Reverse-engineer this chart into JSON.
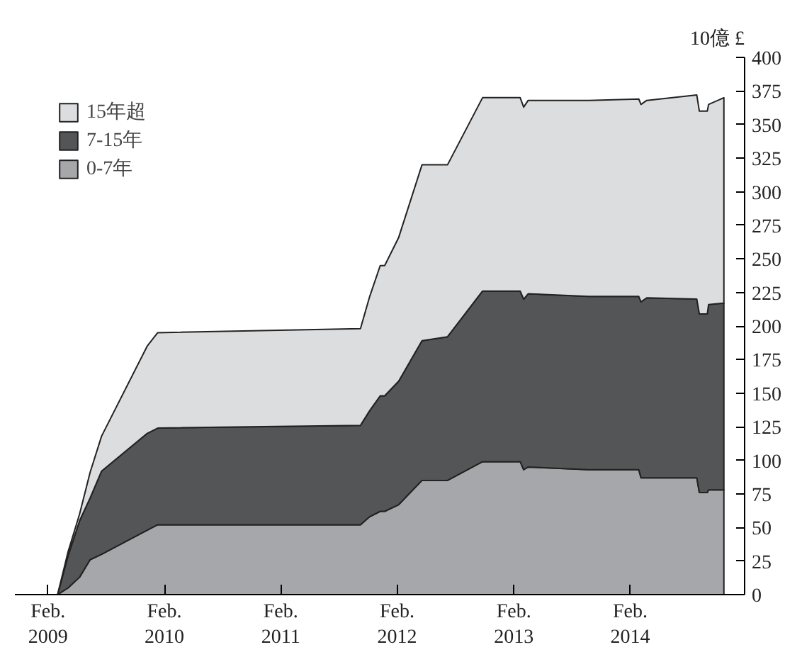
{
  "chart_data": {
    "type": "area",
    "stacked": true,
    "ylabel": "10億 £",
    "x": [
      "2009-03-03",
      "2009-04-05",
      "2009-05-11",
      "2009-06-13",
      "2009-07-19",
      "2009-12-09",
      "2010-01-11",
      "2011-10-09",
      "2011-11-07",
      "2011-12-10",
      "2011-12-24",
      "2012-02-06",
      "2012-04-19",
      "2012-07-08",
      "2012-10-26",
      "2013-02-21",
      "2013-03-04",
      "2013-03-18",
      "2013-09-24",
      "2014-02-28",
      "2014-03-07",
      "2014-03-25",
      "2014-08-29",
      "2014-09-06",
      "2014-10-01",
      "2014-10-05",
      "2014-11-22"
    ],
    "series": [
      {
        "name": "0-7年",
        "color": "#a6a7aa",
        "values": [
          0,
          5,
          13,
          26,
          30,
          48,
          52,
          52,
          58,
          62,
          62,
          67,
          85,
          85,
          99,
          99,
          93,
          95,
          93,
          93,
          87,
          87,
          87,
          76,
          76,
          78,
          78
        ]
      },
      {
        "name": "7-15年",
        "color": "#545557",
        "values": [
          0,
          24,
          42,
          46,
          62,
          72,
          72,
          74,
          79,
          86,
          86,
          92,
          104,
          107,
          127,
          127,
          127,
          129,
          129,
          129,
          131,
          134,
          133,
          133,
          133,
          138,
          139
        ]
      },
      {
        "name": "15年超",
        "color": "#dcdddf",
        "values": [
          0,
          3,
          5,
          19,
          26,
          65,
          71,
          72,
          85,
          97,
          97,
          107,
          131,
          128,
          144,
          144,
          143,
          144,
          146,
          147,
          147,
          147,
          152,
          151,
          151,
          149,
          153
        ]
      }
    ],
    "xlim": [
      "2008-10-20",
      "2015-01-26"
    ],
    "xticks": [
      {
        "value": "2009-02",
        "label": "Feb.\n2009"
      },
      {
        "value": "2010-02",
        "label": "Feb.\n2010"
      },
      {
        "value": "2011-02",
        "label": "Feb.\n2011"
      },
      {
        "value": "2012-02",
        "label": "Feb.\n2012"
      },
      {
        "value": "2013-02",
        "label": "Feb.\n2013"
      },
      {
        "value": "2014-02",
        "label": "Feb.\n2014"
      }
    ],
    "ylim": [
      0,
      400
    ],
    "yticks": [
      0,
      25,
      50,
      75,
      100,
      125,
      150,
      175,
      200,
      225,
      250,
      275,
      300,
      325,
      350,
      375,
      400
    ],
    "grid": false,
    "legend": "top left"
  }
}
